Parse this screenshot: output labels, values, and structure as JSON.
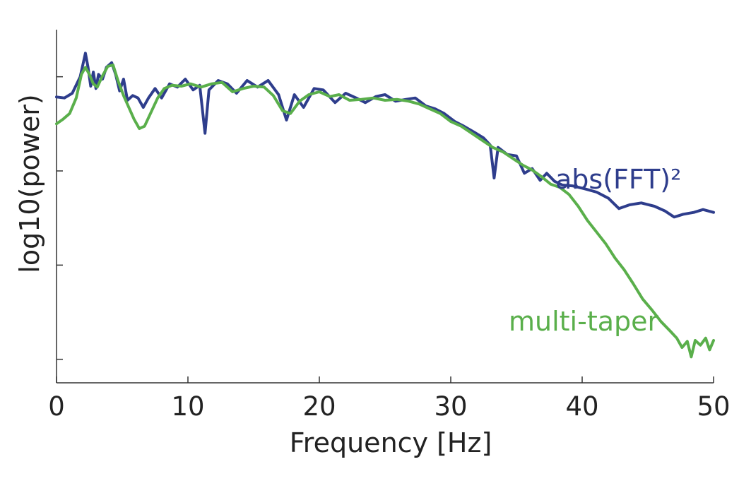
{
  "chart_data": {
    "type": "line",
    "xlabel": "Frequency [Hz]",
    "ylabel": "log10(power)",
    "xlim": [
      0,
      50
    ],
    "ylim": [
      -5.5,
      2.0
    ],
    "x_ticks": [
      "0",
      "10",
      "20",
      "30",
      "40",
      "50"
    ],
    "y_ticks": [
      1,
      -1,
      -3,
      -5
    ],
    "y_tick_labels_shown": false,
    "grid": false,
    "series": [
      {
        "name": "abs(FFT)²",
        "color": "#2e3d8c",
        "points": [
          [
            0,
            0.57
          ],
          [
            0.6,
            0.55
          ],
          [
            1.2,
            0.65
          ],
          [
            1.8,
            1.0
          ],
          [
            2.0,
            1.25
          ],
          [
            2.2,
            1.5
          ],
          [
            2.4,
            1.2
          ],
          [
            2.6,
            0.8
          ],
          [
            2.8,
            1.1
          ],
          [
            3.0,
            0.75
          ],
          [
            3.2,
            1.05
          ],
          [
            3.5,
            0.95
          ],
          [
            3.8,
            1.2
          ],
          [
            4.2,
            1.3
          ],
          [
            4.5,
            1.05
          ],
          [
            4.8,
            0.7
          ],
          [
            5.1,
            0.95
          ],
          [
            5.4,
            0.5
          ],
          [
            5.8,
            0.6
          ],
          [
            6.2,
            0.55
          ],
          [
            6.6,
            0.35
          ],
          [
            7.0,
            0.55
          ],
          [
            7.5,
            0.75
          ],
          [
            8.0,
            0.55
          ],
          [
            8.6,
            0.85
          ],
          [
            9.2,
            0.78
          ],
          [
            9.8,
            0.95
          ],
          [
            10.4,
            0.72
          ],
          [
            10.9,
            0.82
          ],
          [
            11.3,
            -0.2
          ],
          [
            11.6,
            0.72
          ],
          [
            12.3,
            0.92
          ],
          [
            13.0,
            0.85
          ],
          [
            13.7,
            0.65
          ],
          [
            14.5,
            0.92
          ],
          [
            15.3,
            0.78
          ],
          [
            16.1,
            0.92
          ],
          [
            16.9,
            0.62
          ],
          [
            17.5,
            0.08
          ],
          [
            18.1,
            0.62
          ],
          [
            18.8,
            0.35
          ],
          [
            19.6,
            0.75
          ],
          [
            20.3,
            0.72
          ],
          [
            21.2,
            0.45
          ],
          [
            22.0,
            0.65
          ],
          [
            22.8,
            0.55
          ],
          [
            23.5,
            0.45
          ],
          [
            24.3,
            0.58
          ],
          [
            25.0,
            0.62
          ],
          [
            25.8,
            0.48
          ],
          [
            26.6,
            0.52
          ],
          [
            27.3,
            0.55
          ],
          [
            28.1,
            0.38
          ],
          [
            28.8,
            0.32
          ],
          [
            29.5,
            0.22
          ],
          [
            30.3,
            0.05
          ],
          [
            31.0,
            -0.05
          ],
          [
            31.8,
            -0.18
          ],
          [
            32.5,
            -0.3
          ],
          [
            33.0,
            -0.45
          ],
          [
            33.3,
            -1.15
          ],
          [
            33.6,
            -0.5
          ],
          [
            34.3,
            -0.65
          ],
          [
            35.0,
            -0.68
          ],
          [
            35.6,
            -1.05
          ],
          [
            36.2,
            -0.95
          ],
          [
            36.8,
            -1.2
          ],
          [
            37.3,
            -1.05
          ],
          [
            37.9,
            -1.22
          ],
          [
            38.5,
            -1.3
          ],
          [
            39.3,
            -1.32
          ],
          [
            40.2,
            -1.38
          ],
          [
            41.1,
            -1.45
          ],
          [
            42.0,
            -1.58
          ],
          [
            42.8,
            -1.8
          ],
          [
            43.6,
            -1.72
          ],
          [
            44.5,
            -1.68
          ],
          [
            45.5,
            -1.75
          ],
          [
            46.3,
            -1.85
          ],
          [
            47.0,
            -1.98
          ],
          [
            47.7,
            -1.92
          ],
          [
            48.5,
            -1.88
          ],
          [
            49.2,
            -1.82
          ],
          [
            50.0,
            -1.88
          ]
        ]
      },
      {
        "name": "multi-taper",
        "color": "#5aaf4b",
        "points": [
          [
            0,
            0.0
          ],
          [
            0.5,
            0.1
          ],
          [
            1.0,
            0.22
          ],
          [
            1.5,
            0.55
          ],
          [
            1.9,
            1.05
          ],
          [
            2.2,
            1.2
          ],
          [
            2.5,
            1.05
          ],
          [
            2.8,
            0.85
          ],
          [
            3.1,
            0.78
          ],
          [
            3.5,
            1.02
          ],
          [
            3.9,
            1.22
          ],
          [
            4.3,
            1.25
          ],
          [
            4.7,
            0.9
          ],
          [
            5.1,
            0.6
          ],
          [
            5.5,
            0.35
          ],
          [
            5.9,
            0.1
          ],
          [
            6.3,
            -0.1
          ],
          [
            6.7,
            -0.05
          ],
          [
            7.2,
            0.25
          ],
          [
            7.7,
            0.55
          ],
          [
            8.2,
            0.75
          ],
          [
            8.8,
            0.82
          ],
          [
            9.5,
            0.8
          ],
          [
            10.2,
            0.85
          ],
          [
            11.0,
            0.78
          ],
          [
            11.8,
            0.85
          ],
          [
            12.6,
            0.88
          ],
          [
            13.4,
            0.68
          ],
          [
            14.2,
            0.75
          ],
          [
            15.0,
            0.8
          ],
          [
            15.8,
            0.78
          ],
          [
            16.5,
            0.6
          ],
          [
            17.2,
            0.28
          ],
          [
            17.8,
            0.22
          ],
          [
            18.5,
            0.48
          ],
          [
            19.2,
            0.62
          ],
          [
            20.0,
            0.68
          ],
          [
            20.8,
            0.58
          ],
          [
            21.5,
            0.62
          ],
          [
            22.3,
            0.5
          ],
          [
            23.2,
            0.52
          ],
          [
            24.1,
            0.55
          ],
          [
            25.0,
            0.5
          ],
          [
            25.9,
            0.52
          ],
          [
            26.8,
            0.48
          ],
          [
            27.6,
            0.42
          ],
          [
            28.4,
            0.32
          ],
          [
            29.2,
            0.22
          ],
          [
            30.0,
            0.05
          ],
          [
            30.8,
            -0.05
          ],
          [
            31.6,
            -0.2
          ],
          [
            32.4,
            -0.35
          ],
          [
            33.2,
            -0.5
          ],
          [
            34.0,
            -0.6
          ],
          [
            34.8,
            -0.75
          ],
          [
            35.5,
            -0.88
          ],
          [
            36.2,
            -0.98
          ],
          [
            36.9,
            -1.12
          ],
          [
            37.6,
            -1.28
          ],
          [
            38.3,
            -1.35
          ],
          [
            39.0,
            -1.5
          ],
          [
            39.7,
            -1.75
          ],
          [
            40.4,
            -2.05
          ],
          [
            41.1,
            -2.3
          ],
          [
            41.8,
            -2.55
          ],
          [
            42.5,
            -2.85
          ],
          [
            43.2,
            -3.1
          ],
          [
            43.9,
            -3.4
          ],
          [
            44.6,
            -3.72
          ],
          [
            45.3,
            -3.95
          ],
          [
            46.0,
            -4.2
          ],
          [
            46.7,
            -4.4
          ],
          [
            47.2,
            -4.55
          ],
          [
            47.6,
            -4.75
          ],
          [
            48.0,
            -4.62
          ],
          [
            48.3,
            -4.95
          ],
          [
            48.6,
            -4.6
          ],
          [
            49.0,
            -4.7
          ],
          [
            49.4,
            -4.55
          ],
          [
            49.7,
            -4.8
          ],
          [
            50.0,
            -4.6
          ]
        ]
      }
    ]
  }
}
